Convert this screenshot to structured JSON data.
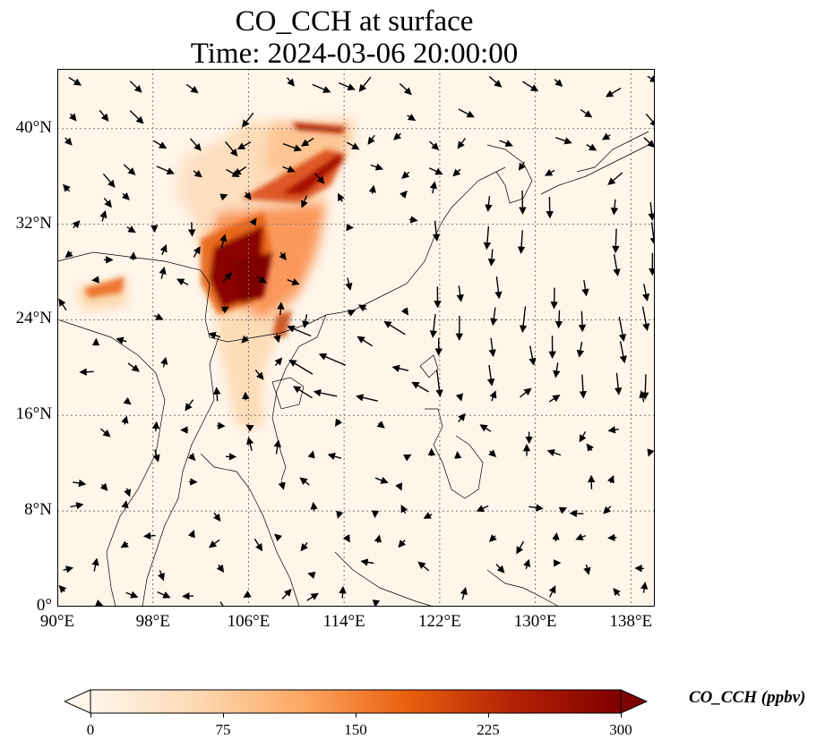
{
  "title": {
    "line1": "CO_CCH at surface",
    "line2": "Time: 2024-03-06 20:00:00"
  },
  "map": {
    "extent": {
      "lon_min": 90,
      "lon_max": 140,
      "lat_min": 0,
      "lat_max": 45
    },
    "lat_ticks": [
      {
        "value": 0,
        "label": "0°"
      },
      {
        "value": 8,
        "label": "8°N"
      },
      {
        "value": 16,
        "label": "16°N"
      },
      {
        "value": 24,
        "label": "24°N"
      },
      {
        "value": 32,
        "label": "32°N"
      },
      {
        "value": 40,
        "label": "40°N"
      }
    ],
    "lon_ticks": [
      {
        "value": 90,
        "label": "90°E"
      },
      {
        "value": 98,
        "label": "98°E"
      },
      {
        "value": 106,
        "label": "106°E"
      },
      {
        "value": 114,
        "label": "114°E"
      },
      {
        "value": 122,
        "label": "122°E"
      },
      {
        "value": 130,
        "label": "130°E"
      },
      {
        "value": 138,
        "label": "138°E"
      }
    ],
    "gridlines": true,
    "overlay": "wind vectors",
    "colormap": [
      "#fff5eb",
      "#fdd9b3",
      "#fda762",
      "#e95e0d",
      "#b32004",
      "#7f0000"
    ]
  },
  "colorbar": {
    "label": "CO_CCH (ppbv)",
    "min": 0,
    "max": 300,
    "ticks": [
      {
        "value": 0,
        "label": "0"
      },
      {
        "value": 75,
        "label": "75"
      },
      {
        "value": 150,
        "label": "150"
      },
      {
        "value": 225,
        "label": "225"
      },
      {
        "value": 300,
        "label": "300"
      }
    ],
    "extend": "both"
  }
}
